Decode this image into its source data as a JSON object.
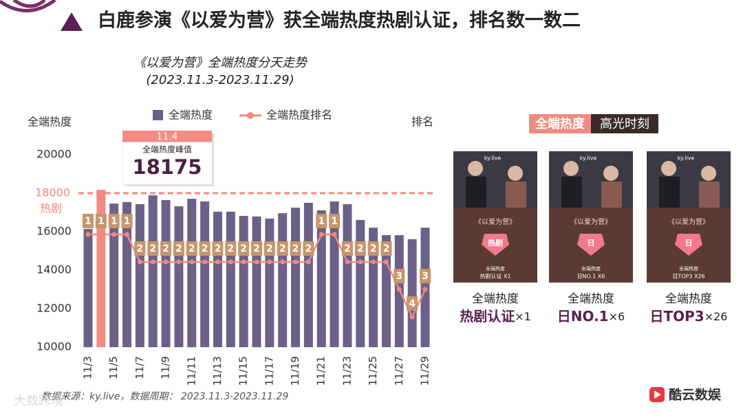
{
  "header": {
    "title": "白鹿参演《以爱为营》获全端热度热剧认证，排名数一数二"
  },
  "chart_data": {
    "type": "combo",
    "title": "《以爱为营》全端热度分天走势",
    "subtitle": "(2023.11.3-2023.11.29)",
    "y_label": "全端热度",
    "y2_label": "排名",
    "categories": [
      "11/3",
      null,
      "11/5",
      null,
      "11/7",
      null,
      "11/9",
      null,
      "11/11",
      null,
      "11/13",
      null,
      "11/15",
      null,
      "11/17",
      null,
      "11/19",
      null,
      "11/21",
      null,
      "11/23",
      null,
      "11/25",
      null,
      "11/27",
      null,
      "11/29"
    ],
    "series": [
      {
        "name": "全端热度",
        "type": "bar",
        "color": "#6b6088",
        "values": [
          16140,
          18175,
          17460,
          17540,
          17430,
          17890,
          17640,
          17320,
          17710,
          17570,
          17040,
          17040,
          16820,
          16790,
          16680,
          16960,
          17250,
          17500,
          17110,
          17570,
          17430,
          16610,
          16210,
          15820,
          15820,
          15610,
          16210
        ]
      },
      {
        "name": "全端热度排名",
        "type": "line",
        "axis": "y2",
        "color": "#f08a7e",
        "label_color": "#c8956b",
        "values": [
          1,
          1,
          1,
          1,
          2,
          2,
          2,
          2,
          2,
          2,
          2,
          2,
          2,
          2,
          2,
          2,
          2,
          2,
          1,
          1,
          2,
          2,
          2,
          2,
          3,
          4,
          3
        ]
      }
    ],
    "peak_color": "#f28b82",
    "ylim": [
      10000,
      20000
    ],
    "yticks": [
      10000,
      12000,
      14000,
      16000,
      20000
    ],
    "y2lim": [
      5.1,
      -1.9
    ],
    "reference_line": {
      "value": 18000,
      "label": "热剧",
      "color": "#f08a7e"
    },
    "peak_annotation": {
      "date": "11.4",
      "label": "全端热度峰值"
    }
  },
  "highlights": {
    "title": "全端热度",
    "title2": "高光时刻",
    "cards": [
      {
        "brand": "ky.live",
        "show": "《以爱为营》",
        "badge": "热剧",
        "inner_top": "全端热度",
        "inner_label": "热剧认证 X1",
        "caption": "全端热度",
        "award": "热剧认证",
        "count": "×1"
      },
      {
        "brand": "ky.live",
        "show": "《以爱为营》",
        "badge": "日",
        "inner_top": "全端热度",
        "inner_label": "日NO.1 X6",
        "caption": "全端热度",
        "award": "日NO.1",
        "count": "×6"
      },
      {
        "brand": "ky.live",
        "show": "《以爱为营》",
        "badge": "日",
        "inner_top": "全端热度",
        "inner_label": "日TOP3 X26",
        "caption": "全端热度",
        "award": "日TOP3",
        "count": "×26"
      }
    ]
  },
  "footer": {
    "source": "数据来源：ky.live，数据周期： 2023.11.3-2023.11.29",
    "logo": "酷云数娱",
    "watermark": "大数跨境"
  }
}
